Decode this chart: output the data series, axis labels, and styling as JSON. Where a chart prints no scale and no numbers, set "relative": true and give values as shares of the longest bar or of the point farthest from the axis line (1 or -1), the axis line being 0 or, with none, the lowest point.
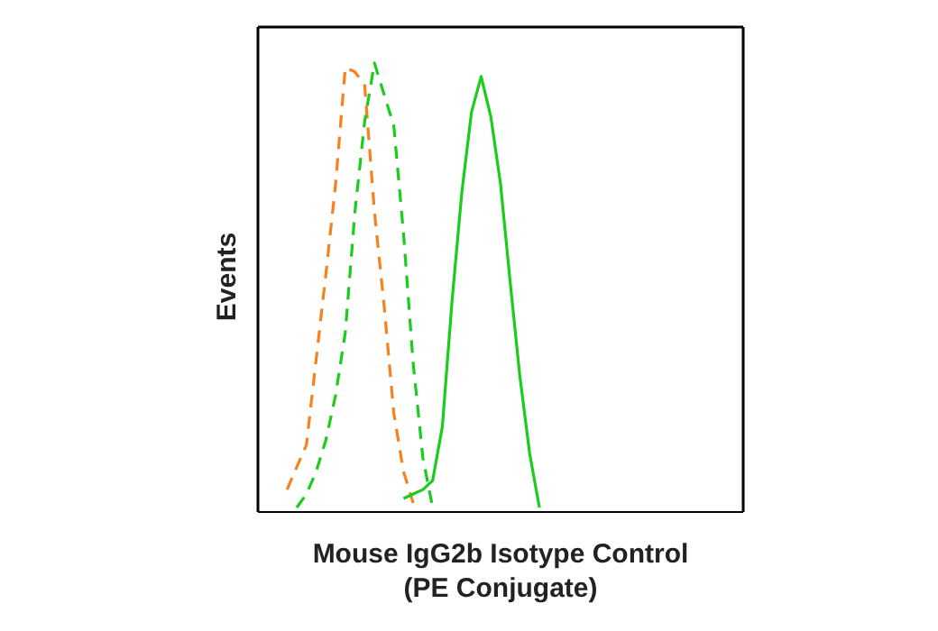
{
  "chart_data": {
    "type": "line",
    "relative": true,
    "xlabel": "Mouse IgG2b Isotype Control\n(PE Conjugate)",
    "ylabel": "Events",
    "marker": "none",
    "legend": false,
    "categories": [
      null,
      null,
      null,
      null,
      null,
      null,
      null,
      null,
      null,
      null,
      null,
      null,
      null,
      null,
      null,
      null,
      null,
      null,
      null,
      null,
      null,
      null,
      null,
      null,
      null,
      null,
      null,
      null,
      null,
      null,
      null,
      null,
      null,
      null,
      null,
      null,
      null,
      null,
      null,
      null,
      null,
      null,
      null,
      null,
      null,
      null,
      null,
      null,
      null,
      null,
      null
    ],
    "series": [
      {
        "color": "#f7811f",
        "line_style": "dashed",
        "values": [
          null,
          null,
          null,
          0.05,
          0.1,
          0.15,
          0.34,
          0.53,
          0.73,
          0.99,
          0.98,
          0.95,
          0.67,
          0.46,
          0.22,
          0.09,
          0.02,
          null,
          null,
          null,
          null,
          null,
          null,
          null,
          null,
          null,
          null,
          null,
          null,
          null,
          null,
          null,
          null,
          null,
          null,
          null,
          null,
          null,
          null,
          null,
          null,
          null,
          null,
          null,
          null,
          null,
          null,
          null,
          null,
          null,
          null
        ]
      },
      {
        "color": "#1ccc1c",
        "line_style": "dashed",
        "values": [
          null,
          null,
          null,
          null,
          0.01,
          0.04,
          0.09,
          0.16,
          0.26,
          0.4,
          0.67,
          0.87,
          1.0,
          0.93,
          0.86,
          0.62,
          0.33,
          0.12,
          0.01,
          null,
          null,
          null,
          null,
          null,
          null,
          null,
          null,
          null,
          null,
          null,
          null,
          null,
          null,
          null,
          null,
          null,
          null,
          null,
          null,
          null,
          null,
          null,
          null,
          null,
          null,
          null,
          null,
          null,
          null,
          null,
          null
        ]
      },
      {
        "color": "#1ccc1c",
        "line_style": "solid",
        "values": [
          null,
          null,
          null,
          null,
          null,
          null,
          null,
          null,
          null,
          null,
          null,
          null,
          null,
          null,
          null,
          0.03,
          0.04,
          0.05,
          0.07,
          0.19,
          0.47,
          0.71,
          0.89,
          0.97,
          0.88,
          0.73,
          0.51,
          0.3,
          0.13,
          0.01,
          null,
          null,
          null,
          null,
          null,
          null,
          null,
          null,
          null,
          null,
          null,
          null,
          null,
          null,
          null,
          null,
          null,
          null,
          null,
          null,
          null
        ]
      }
    ]
  }
}
